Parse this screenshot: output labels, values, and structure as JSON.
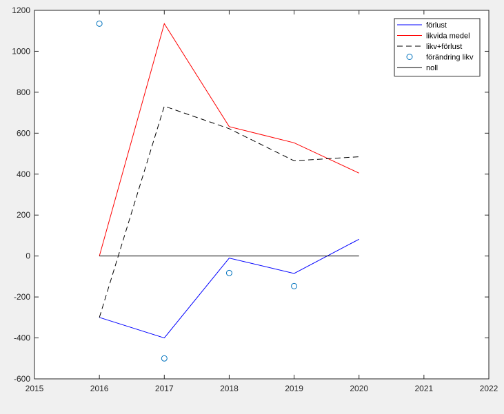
{
  "chart_data": {
    "type": "line",
    "title": "",
    "xlabel": "",
    "ylabel": "",
    "xlim": [
      2015,
      2022
    ],
    "ylim": [
      -600,
      1200
    ],
    "xticks": [
      "2015",
      "2016",
      "2017",
      "2018",
      "2019",
      "2020",
      "2021",
      "2022"
    ],
    "yticks": [
      "-600",
      "-400",
      "-200",
      "0",
      "200",
      "400",
      "600",
      "800",
      "1000",
      "1200"
    ],
    "grid": false,
    "legend_position": "top-right",
    "series": [
      {
        "name": "förlust",
        "style": "line",
        "color": "#0000ff",
        "dash": "solid",
        "x": [
          2016,
          2017,
          2018,
          2019,
          2020
        ],
        "y": [
          -300,
          -400,
          -10,
          -85,
          82
        ]
      },
      {
        "name": "likvida medel",
        "style": "line",
        "color": "#ff0000",
        "dash": "solid",
        "x": [
          2016,
          2017,
          2018,
          2019,
          2020
        ],
        "y": [
          0,
          1135,
          632,
          553,
          405
        ]
      },
      {
        "name": "likv+förlust",
        "style": "line",
        "color": "#000000",
        "dash": "dashed",
        "x": [
          2016,
          2017,
          2018,
          2019,
          2020
        ],
        "y": [
          -300,
          732,
          622,
          465,
          485
        ]
      },
      {
        "name": "förändring likv",
        "style": "marker",
        "color": "#0072bd",
        "dash": "none",
        "x": [
          2016,
          2017,
          2018,
          2019
        ],
        "y": [
          1135,
          -500,
          -83,
          -147
        ]
      },
      {
        "name": "noll",
        "style": "line",
        "color": "#000000",
        "dash": "solid",
        "x": [
          2016,
          2020
        ],
        "y": [
          0,
          0
        ]
      }
    ]
  }
}
